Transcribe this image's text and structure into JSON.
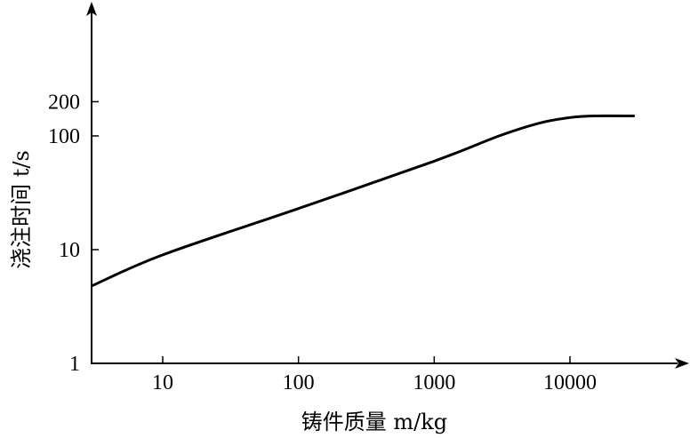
{
  "chart_data": {
    "type": "line",
    "xscale": "log",
    "yscale": "log",
    "xlabel": "铸件质量 m/kg",
    "ylabel": "浇注时间 t/s",
    "xticks": [
      {
        "value": 10,
        "label": "10"
      },
      {
        "value": 100,
        "label": "100"
      },
      {
        "value": 1000,
        "label": "1000"
      },
      {
        "value": 10000,
        "label": "10000"
      }
    ],
    "yticks": [
      {
        "value": 1,
        "label": "1"
      },
      {
        "value": 10,
        "label": "10"
      },
      {
        "value": 100,
        "label": "100"
      },
      {
        "value": 200,
        "label": "200"
      }
    ],
    "xlim": [
      3,
      30000
    ],
    "ylim": [
      1,
      400
    ],
    "grid": false,
    "series": [
      {
        "x": [
          3,
          10,
          100,
          1000,
          3000,
          6000,
          10000,
          15000,
          30000
        ],
        "y": [
          4.8,
          9.0,
          23,
          60,
          100,
          130,
          145,
          150,
          150
        ]
      }
    ]
  }
}
